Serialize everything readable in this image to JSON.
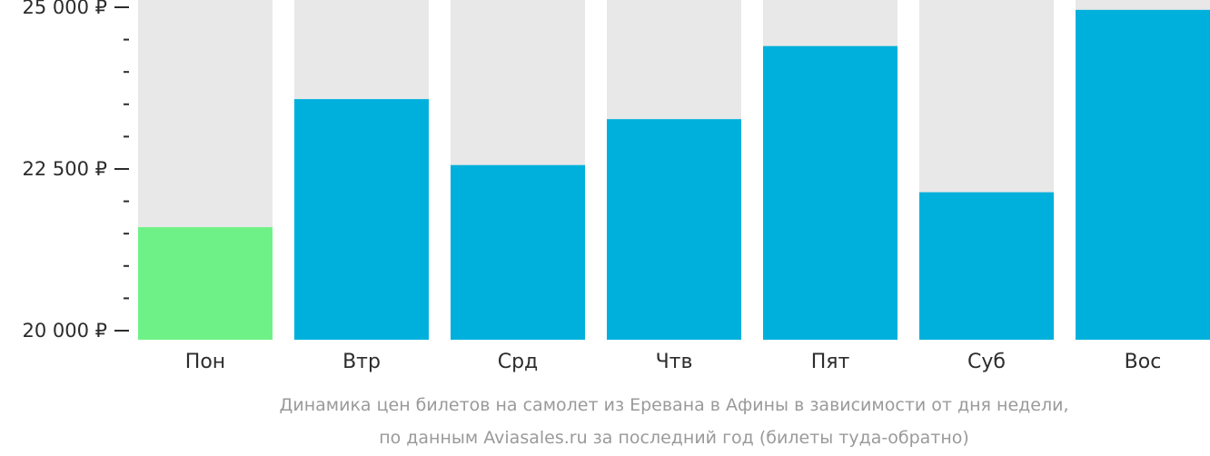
{
  "chart_data": {
    "type": "bar",
    "categories": [
      "Пон",
      "Втр",
      "Срд",
      "Чтв",
      "Пят",
      "Суб",
      "Вос"
    ],
    "values": [
      21600,
      23580,
      22560,
      23270,
      24400,
      22140,
      24960
    ],
    "ylim": [
      20000,
      25000
    ],
    "yticks": [
      {
        "value": 20000,
        "label": "20 000 ₽"
      },
      {
        "value": 22500,
        "label": "22 500 ₽"
      },
      {
        "value": 25000,
        "label": "25 000 ₽"
      }
    ],
    "minor_tick_step": 500,
    "caption_lines": [
      "Динамика цен билетов на самолет из Еревана в Афины в зависимости от дня недели,",
      "по данным Aviasales.ru за последний год (билеты туда-обратно)"
    ],
    "colors": {
      "bar": "#00b0dc",
      "bar_min": "#6ef287",
      "bar_background": "#e8e8e8",
      "axis": "#2c2c2c",
      "caption": "#9a9a9a"
    },
    "highlight": "min",
    "grid": false,
    "legend": "none"
  }
}
